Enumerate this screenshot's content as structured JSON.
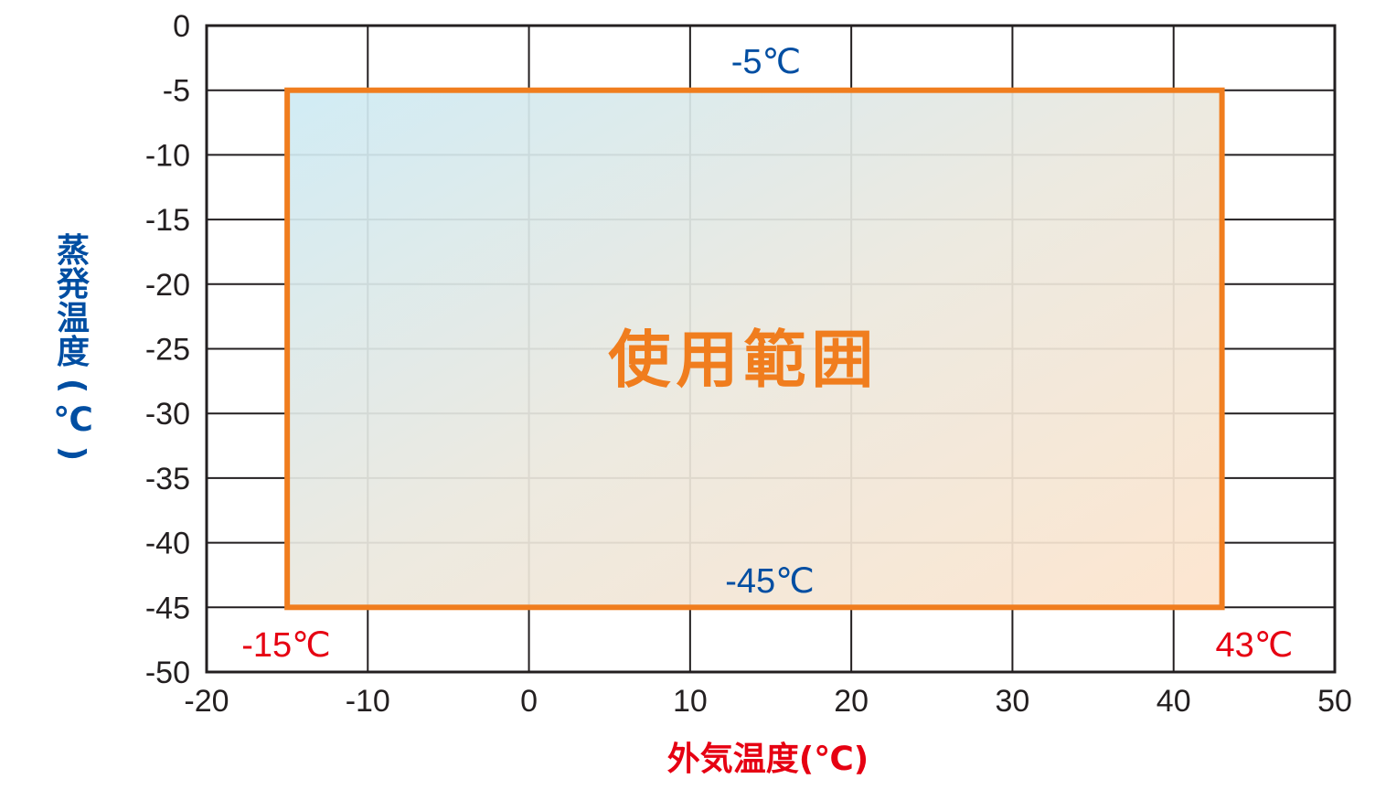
{
  "chart_data": {
    "type": "area",
    "xlabel": "外気温度(℃)",
    "ylabel_chars": [
      "蒸",
      "発",
      "温",
      "度",
      "(",
      "℃",
      ")"
    ],
    "xlim": [
      -20,
      50
    ],
    "ylim": [
      -50,
      0
    ],
    "x_ticks": [
      "-20",
      "-10",
      "0",
      "10",
      "20",
      "30",
      "40",
      "50"
    ],
    "y_ticks": [
      "0",
      "-5",
      "-10",
      "-15",
      "-20",
      "-25",
      "-30",
      "-35",
      "-40",
      "-45",
      "-50"
    ],
    "grid": true,
    "region": {
      "label": "使用範囲",
      "x_min": -15,
      "x_max": 43,
      "y_max": -5,
      "y_min": -45,
      "color": "#f07d1e"
    },
    "annotations": {
      "top": "-5℃",
      "bottom": "-45℃",
      "left": "-15℃",
      "right": "43℃"
    },
    "colors": {
      "annotation_temp_evap": "#004ea2",
      "annotation_temp_outside": "#e60012",
      "grid": "#231f20"
    }
  }
}
